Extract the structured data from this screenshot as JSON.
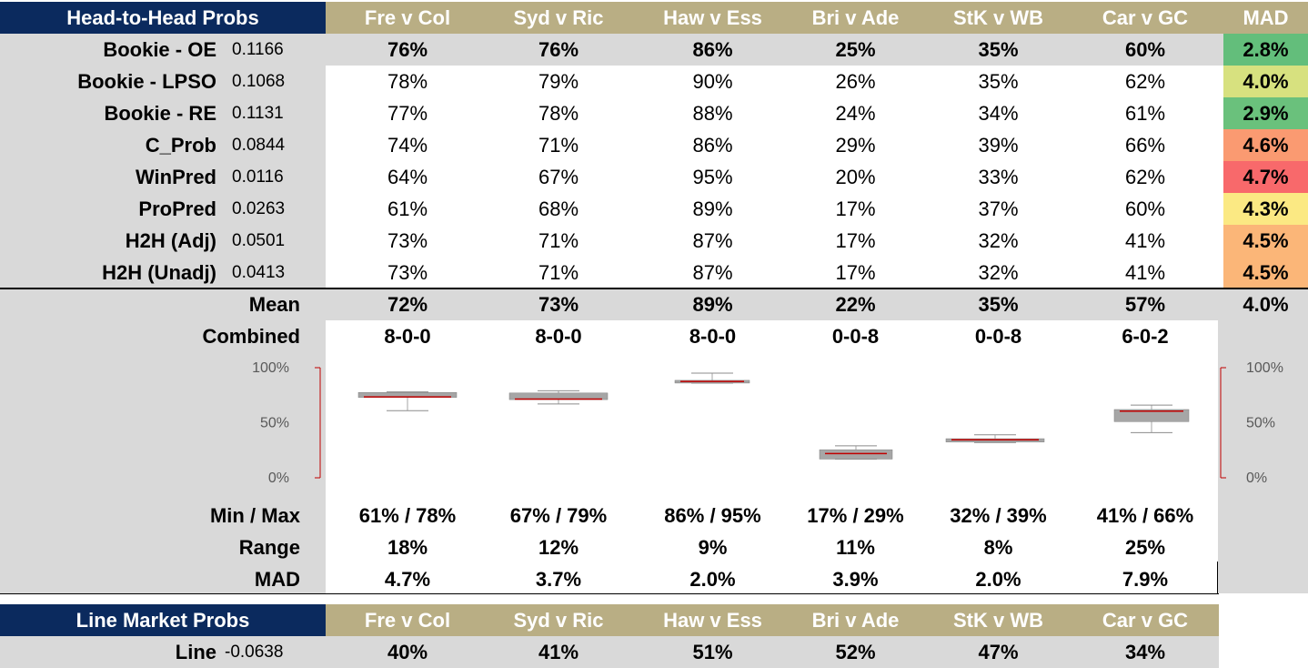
{
  "head_to_head": {
    "title": "Head-to-Head Probs",
    "matches": [
      "Fre v Col",
      "Syd v Ric",
      "Haw v Ess",
      "Bri v Ade",
      "StK v WB",
      "Car v GC"
    ],
    "mad_header": "MAD",
    "rows": [
      {
        "name": "Bookie - OE",
        "score": "0.1166",
        "values": [
          "76%",
          "76%",
          "86%",
          "25%",
          "35%",
          "60%"
        ],
        "mad": "2.8%",
        "mad_color": "#63be7b"
      },
      {
        "name": "Bookie - LPSO",
        "score": "0.1068",
        "values": [
          "78%",
          "79%",
          "90%",
          "26%",
          "35%",
          "62%"
        ],
        "mad": "4.0%",
        "mad_color": "#d7e17f"
      },
      {
        "name": "Bookie - RE",
        "score": "0.1131",
        "values": [
          "77%",
          "78%",
          "88%",
          "24%",
          "34%",
          "61%"
        ],
        "mad": "2.9%",
        "mad_color": "#6ac17c"
      },
      {
        "name": "C_Prob",
        "score": "0.0844",
        "values": [
          "74%",
          "71%",
          "86%",
          "29%",
          "39%",
          "66%"
        ],
        "mad": "4.6%",
        "mad_color": "#fa9a71"
      },
      {
        "name": "WinPred",
        "score": "0.0116",
        "values": [
          "64%",
          "67%",
          "95%",
          "20%",
          "33%",
          "62%"
        ],
        "mad": "4.7%",
        "mad_color": "#f8696b"
      },
      {
        "name": "ProPred",
        "score": "0.0263",
        "values": [
          "61%",
          "68%",
          "89%",
          "17%",
          "37%",
          "60%"
        ],
        "mad": "4.3%",
        "mad_color": "#fbe983"
      },
      {
        "name": "H2H (Adj)",
        "score": "0.0501",
        "values": [
          "73%",
          "71%",
          "87%",
          "17%",
          "32%",
          "41%"
        ],
        "mad": "4.5%",
        "mad_color": "#fbb678"
      },
      {
        "name": "H2H (Unadj)",
        "score": "0.0413",
        "values": [
          "73%",
          "71%",
          "87%",
          "17%",
          "32%",
          "41%"
        ],
        "mad": "4.5%",
        "mad_color": "#fbb678"
      }
    ],
    "mean": {
      "label": "Mean",
      "values": [
        "72%",
        "73%",
        "89%",
        "22%",
        "35%",
        "57%"
      ],
      "mad": "4.0%"
    },
    "combined": {
      "label": "Combined",
      "values": [
        "8-0-0",
        "8-0-0",
        "8-0-0",
        "0-0-8",
        "0-0-8",
        "6-0-2"
      ]
    },
    "minmax": {
      "label": "Min / Max",
      "values": [
        "61% / 78%",
        "67% / 79%",
        "86% / 95%",
        "17% / 29%",
        "32% / 39%",
        "41% / 66%"
      ]
    },
    "range": {
      "label": "Range",
      "values": [
        "18%",
        "12%",
        "9%",
        "11%",
        "8%",
        "25%"
      ]
    },
    "mad_row": {
      "label": "MAD",
      "values": [
        "4.7%",
        "3.7%",
        "2.0%",
        "3.9%",
        "2.0%",
        "7.9%"
      ]
    }
  },
  "line_market": {
    "title": "Line Market Probs",
    "matches": [
      "Fre v Col",
      "Syd v Ric",
      "Haw v Ess",
      "Bri v Ade",
      "StK v WB",
      "Car v GC"
    ],
    "row": {
      "name": "Line",
      "score": "-0.0638",
      "values": [
        "40%",
        "41%",
        "51%",
        "52%",
        "47%",
        "34%"
      ]
    }
  },
  "chart_data": {
    "type": "boxplot",
    "categories": [
      "Fre v Col",
      "Syd v Ric",
      "Haw v Ess",
      "Bri v Ade",
      "StK v WB",
      "Car v GC"
    ],
    "y_ticks": [
      "100%",
      "50%",
      "0%"
    ],
    "ylim": [
      0,
      100
    ],
    "boxes": [
      {
        "min": 61,
        "q1": 73,
        "median": 73.5,
        "q3": 77.5,
        "max": 78
      },
      {
        "min": 67,
        "q1": 71,
        "median": 71.5,
        "q3": 77,
        "max": 79
      },
      {
        "min": 86,
        "q1": 86.5,
        "median": 87.5,
        "q3": 88.5,
        "max": 95
      },
      {
        "min": 17,
        "q1": 17,
        "median": 22,
        "q3": 25.5,
        "max": 29
      },
      {
        "min": 32,
        "q1": 32.5,
        "median": 34.5,
        "q3": 35.5,
        "max": 39
      },
      {
        "min": 41,
        "q1": 51,
        "median": 60.5,
        "q3": 62,
        "max": 66
      }
    ],
    "box_color": "#a6a6a6",
    "median_color": "#c00000",
    "axis_color": "#c00000"
  }
}
